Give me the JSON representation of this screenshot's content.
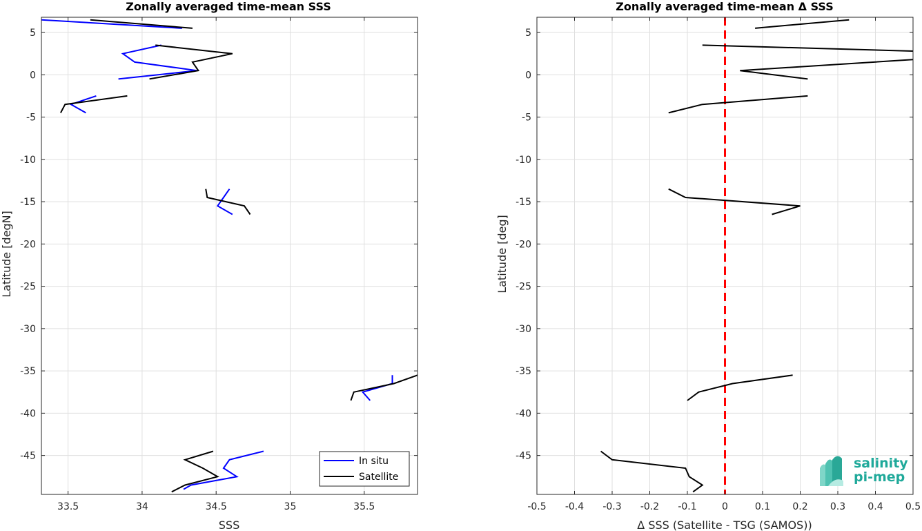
{
  "chart_data": [
    {
      "type": "line",
      "title": "Zonally averaged time-mean SSS",
      "xlabel": "SSS",
      "ylabel": "Latitude [degN]",
      "xlim": [
        33.32,
        35.86
      ],
      "ylim": [
        -49.6,
        6.8
      ],
      "xticks": [
        "33.5",
        "34",
        "34.5",
        "35",
        "35.5"
      ],
      "xtick_values": [
        33.5,
        34,
        34.5,
        35,
        35.5
      ],
      "yticks": [
        "5",
        "0",
        "-5",
        "-10",
        "-15",
        "-20",
        "-25",
        "-30",
        "-35",
        "-40",
        "-45"
      ],
      "ytick_values": [
        5,
        0,
        -5,
        -10,
        -15,
        -20,
        -25,
        -30,
        -35,
        -40,
        -45
      ],
      "grid": true,
      "legend_position": "bottom-right",
      "series": [
        {
          "name": "In situ",
          "color": "#0000ff",
          "segments": [
            [
              [
                33.32,
                6.5
              ],
              [
                34.27,
                5.5
              ]
            ],
            [
              [
                34.13,
                3.5
              ],
              [
                33.87,
                2.5
              ],
              [
                33.95,
                1.5
              ],
              [
                34.37,
                0.5
              ],
              [
                33.84,
                -0.5
              ]
            ],
            [
              [
                33.69,
                -2.5
              ],
              [
                33.52,
                -3.5
              ],
              [
                33.62,
                -4.5
              ]
            ],
            [
              [
                34.59,
                -13.5
              ],
              [
                34.55,
                -14.5
              ],
              [
                34.51,
                -15.5
              ],
              [
                34.61,
                -16.5
              ]
            ],
            [
              [
                35.69,
                -35.5
              ],
              [
                35.69,
                -36.5
              ],
              [
                35.49,
                -37.5
              ],
              [
                35.54,
                -38.5
              ]
            ],
            [
              [
                34.82,
                -44.5
              ],
              [
                34.59,
                -45.5
              ],
              [
                34.55,
                -46.5
              ],
              [
                34.64,
                -47.5
              ],
              [
                34.33,
                -48.5
              ],
              [
                34.28,
                -49.0
              ]
            ]
          ]
        },
        {
          "name": "Satellite",
          "color": "#000000",
          "segments": [
            [
              [
                33.65,
                6.5
              ],
              [
                34.34,
                5.5
              ]
            ],
            [
              [
                34.09,
                3.5
              ],
              [
                34.61,
                2.5
              ],
              [
                34.34,
                1.5
              ],
              [
                34.38,
                0.5
              ],
              [
                34.05,
                -0.5
              ]
            ],
            [
              [
                33.9,
                -2.5
              ],
              [
                33.48,
                -3.5
              ],
              [
                33.45,
                -4.5
              ]
            ],
            [
              [
                34.43,
                -13.5
              ],
              [
                34.44,
                -14.5
              ],
              [
                34.69,
                -15.5
              ],
              [
                34.73,
                -16.5
              ]
            ],
            [
              [
                35.86,
                -35.5
              ],
              [
                35.7,
                -36.5
              ],
              [
                35.43,
                -37.5
              ],
              [
                35.41,
                -38.5
              ]
            ],
            [
              [
                34.48,
                -44.5
              ],
              [
                34.29,
                -45.5
              ],
              [
                34.41,
                -46.5
              ],
              [
                34.51,
                -47.5
              ],
              [
                34.29,
                -48.5
              ],
              [
                34.2,
                -49.3
              ]
            ]
          ]
        }
      ]
    },
    {
      "type": "line",
      "title": "Zonally averaged time-mean Δ SSS",
      "xlabel": "Δ SSS (Satellite - TSG (SAMOS))",
      "ylabel": "Latitude [deg]",
      "xlim": [
        -0.5,
        0.5
      ],
      "ylim": [
        -49.6,
        6.8
      ],
      "xticks": [
        "-0.5",
        "-0.4",
        "-0.3",
        "-0.2",
        "-0.1",
        "0",
        "0.1",
        "0.2",
        "0.3",
        "0.4",
        "0.5"
      ],
      "xtick_values": [
        -0.5,
        -0.4,
        -0.3,
        -0.2,
        -0.1,
        0,
        0.1,
        0.2,
        0.3,
        0.4,
        0.5
      ],
      "yticks": [
        "5",
        "0",
        "-5",
        "-10",
        "-15",
        "-20",
        "-25",
        "-30",
        "-35",
        "-40",
        "-45"
      ],
      "ytick_values": [
        5,
        0,
        -5,
        -10,
        -15,
        -20,
        -25,
        -30,
        -35,
        -40,
        -45
      ],
      "grid": true,
      "zero_line": {
        "x": 0,
        "color": "#ff0000",
        "style": "dashed"
      },
      "series": [
        {
          "color": "#000000",
          "segments": [
            [
              [
                0.33,
                6.5
              ],
              [
                0.08,
                5.5
              ]
            ],
            [
              [
                -0.06,
                3.5
              ],
              [
                0.5,
                2.8
              ]
            ],
            [
              [
                0.5,
                1.8
              ],
              [
                0.04,
                0.5
              ],
              [
                0.22,
                -0.5
              ]
            ],
            [
              [
                0.22,
                -2.5
              ],
              [
                -0.06,
                -3.5
              ],
              [
                -0.15,
                -4.5
              ]
            ],
            [
              [
                -0.15,
                -13.5
              ],
              [
                -0.105,
                -14.5
              ],
              [
                0.2,
                -15.5
              ],
              [
                0.125,
                -16.5
              ]
            ],
            [
              [
                0.18,
                -35.5
              ],
              [
                0.02,
                -36.5
              ],
              [
                -0.07,
                -37.5
              ],
              [
                -0.1,
                -38.5
              ]
            ],
            [
              [
                -0.33,
                -44.5
              ],
              [
                -0.3,
                -45.5
              ],
              [
                -0.105,
                -46.5
              ],
              [
                -0.095,
                -47.5
              ],
              [
                -0.06,
                -48.5
              ],
              [
                -0.085,
                -49.3
              ]
            ]
          ]
        }
      ]
    }
  ],
  "legend": {
    "entries": [
      "In situ",
      "Satellite"
    ]
  },
  "logo": {
    "line1": "salinity",
    "line2": "pi-mep"
  }
}
